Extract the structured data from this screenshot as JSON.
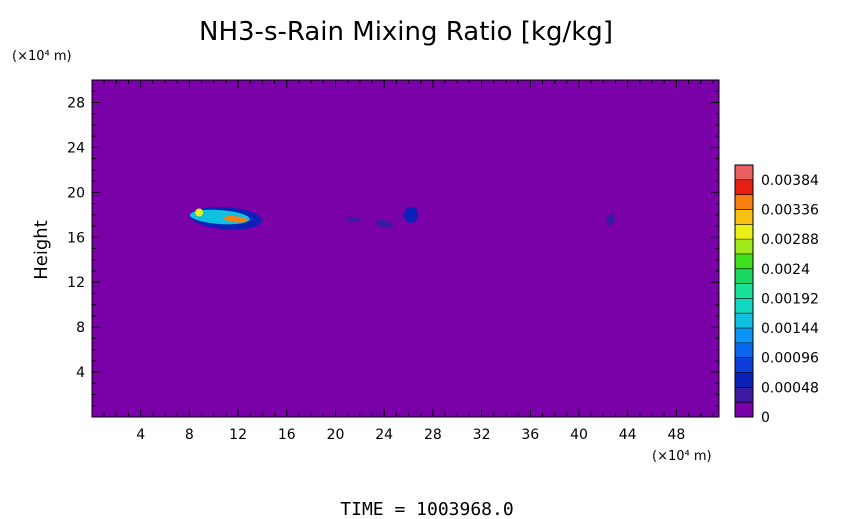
{
  "chart_data": {
    "type": "heatmap",
    "title": "NH3-s-Rain Mixing Ratio [kg/kg]",
    "ylabel": "Height",
    "x_unit_label": "(×10⁴ m)",
    "y_unit_label": "(×10⁴ m)",
    "xlim": [
      0,
      51.5
    ],
    "ylim": [
      0,
      30
    ],
    "x_ticks": [
      "4",
      "8",
      "12",
      "16",
      "20",
      "24",
      "28",
      "32",
      "36",
      "40",
      "44",
      "48"
    ],
    "x_tick_values": [
      4,
      8,
      12,
      16,
      20,
      24,
      28,
      32,
      36,
      40,
      44,
      48
    ],
    "y_ticks": [
      "4",
      "8",
      "12",
      "16",
      "20",
      "24",
      "28"
    ],
    "y_tick_values": [
      4,
      8,
      12,
      16,
      20,
      24,
      28
    ],
    "background_value": 0,
    "colorbar": {
      "labels": [
        "0.00384",
        "0.00336",
        "0.00288",
        "0.0024",
        "0.00192",
        "0.00144",
        "0.00096",
        "0.00048",
        "0"
      ],
      "label_values": [
        0.00384,
        0.00336,
        0.00288,
        0.0024,
        0.00192,
        0.00144,
        0.00096,
        0.00048,
        0
      ],
      "min": 0,
      "max": 0.00408,
      "levels": 17,
      "colors": [
        "#7a00a8",
        "#3a1aa0",
        "#0a22b8",
        "#0a3ed8",
        "#0a66f0",
        "#0a94f4",
        "#10c0e0",
        "#10d8c0",
        "#18e098",
        "#18d860",
        "#40e020",
        "#a0e818",
        "#e8f018",
        "#f8c010",
        "#f88010",
        "#e82010",
        "#e86060"
      ]
    },
    "features": [
      {
        "name": "main-core",
        "x": 11.8,
        "y": 17.6,
        "value": 0.0036
      },
      {
        "name": "main-left-core",
        "x": 8.8,
        "y": 18.2,
        "value": 0.003
      },
      {
        "name": "main-ring",
        "x": 10.5,
        "y": 17.8,
        "value": 0.0016
      },
      {
        "name": "main-envelope",
        "x": 11.0,
        "y": 17.7,
        "value": 0.0006
      },
      {
        "name": "patch-a",
        "x": 16.8,
        "y": 18.2,
        "value": 0.0002
      },
      {
        "name": "patch-b",
        "x": 19.0,
        "y": 17.8,
        "value": 0.0002
      },
      {
        "name": "patch-c",
        "x": 21.5,
        "y": 17.6,
        "value": 0.0003
      },
      {
        "name": "patch-d",
        "x": 24.0,
        "y": 17.2,
        "value": 0.0004
      },
      {
        "name": "patch-e",
        "x": 26.2,
        "y": 18.0,
        "value": 0.0005
      },
      {
        "name": "patch-f",
        "x": 42.6,
        "y": 17.6,
        "value": 0.0003
      }
    ]
  },
  "footer": {
    "time_label": "TIME  =  1003968.0"
  }
}
